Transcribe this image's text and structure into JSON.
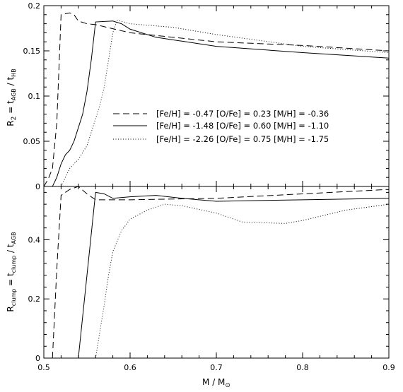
{
  "chart_data": [
    {
      "type": "line",
      "panel": "top",
      "ylabel": "R2 = tAGB / tHB",
      "ylim": [
        0,
        0.2
      ],
      "xlim": [
        0.5,
        0.9
      ],
      "yticks": [
        0,
        0.05,
        0.1,
        0.15,
        0.2
      ],
      "ytick_labels": [
        "0",
        "0.05",
        "0.1",
        "0.15",
        "0.2"
      ],
      "legend_position": "center-right",
      "series": [
        {
          "name": "[Fe/H] = -0.47 [O/Fe] = 0.23 [M/H] = -0.36",
          "dash": "dashed",
          "x": [
            0.5,
            0.505,
            0.51,
            0.515,
            0.52,
            0.53,
            0.535,
            0.54,
            0.55,
            0.56,
            0.6,
            0.7,
            0.8,
            0.9
          ],
          "y": [
            0.0,
            0.008,
            0.02,
            0.07,
            0.19,
            0.192,
            0.19,
            0.183,
            0.18,
            0.179,
            0.17,
            0.16,
            0.156,
            0.15
          ]
        },
        {
          "name": "[Fe/H] = -1.48 [O/Fe] = 0.60 [M/H] = -1.10",
          "dash": "solid",
          "x": [
            0.5,
            0.51,
            0.515,
            0.52,
            0.525,
            0.53,
            0.535,
            0.54,
            0.545,
            0.55,
            0.555,
            0.56,
            0.58,
            0.59,
            0.6,
            0.63,
            0.7,
            0.8,
            0.9
          ],
          "y": [
            0.0,
            0.0,
            0.01,
            0.025,
            0.035,
            0.04,
            0.05,
            0.065,
            0.08,
            0.105,
            0.14,
            0.182,
            0.183,
            0.18,
            0.174,
            0.165,
            0.155,
            0.148,
            0.142
          ]
        },
        {
          "name": "[Fe/H] = -2.26 [O/Fe] = 0.75 [M/H] = -1.75",
          "dash": "dotted",
          "x": [
            0.52,
            0.53,
            0.54,
            0.55,
            0.555,
            0.56,
            0.565,
            0.57,
            0.575,
            0.58,
            0.585,
            0.6,
            0.65,
            0.7,
            0.8,
            0.9
          ],
          "y": [
            0.0,
            0.02,
            0.03,
            0.045,
            0.06,
            0.075,
            0.09,
            0.11,
            0.14,
            0.17,
            0.184,
            0.18,
            0.176,
            0.168,
            0.155,
            0.148
          ]
        }
      ]
    },
    {
      "type": "line",
      "panel": "bottom",
      "xlabel": "M / M⊙",
      "ylabel": "Rclump = tclump / tAGB",
      "xlim": [
        0.5,
        0.9
      ],
      "ylim": [
        0,
        0.58
      ],
      "xticks": [
        0.5,
        0.6,
        0.7,
        0.8,
        0.9
      ],
      "xtick_labels": [
        "0.5",
        "0.6",
        "0.7",
        "0.8",
        "0.9"
      ],
      "yticks": [
        0,
        0.2,
        0.4
      ],
      "ytick_labels": [
        "0",
        "0.2",
        "0.4"
      ],
      "series": [
        {
          "dash": "dashed",
          "x": [
            0.51,
            0.515,
            0.52,
            0.53,
            0.54,
            0.55,
            0.56,
            0.6,
            0.7,
            0.8,
            0.9
          ],
          "y": [
            0.0,
            0.3,
            0.55,
            0.57,
            0.58,
            0.555,
            0.535,
            0.535,
            0.54,
            0.555,
            0.57
          ]
        },
        {
          "dash": "solid",
          "x": [
            0.54,
            0.55,
            0.56,
            0.57,
            0.58,
            0.6,
            0.63,
            0.66,
            0.7,
            0.8,
            0.9
          ],
          "y": [
            0.0,
            0.28,
            0.56,
            0.555,
            0.54,
            0.545,
            0.55,
            0.54,
            0.53,
            0.535,
            0.54
          ]
        },
        {
          "dash": "dotted",
          "x": [
            0.56,
            0.57,
            0.575,
            0.58,
            0.59,
            0.6,
            0.62,
            0.64,
            0.66,
            0.7,
            0.73,
            0.78,
            0.8,
            0.85,
            0.9
          ],
          "y": [
            0.0,
            0.18,
            0.28,
            0.36,
            0.43,
            0.47,
            0.5,
            0.52,
            0.515,
            0.49,
            0.46,
            0.455,
            0.465,
            0.5,
            0.52
          ]
        }
      ]
    }
  ]
}
